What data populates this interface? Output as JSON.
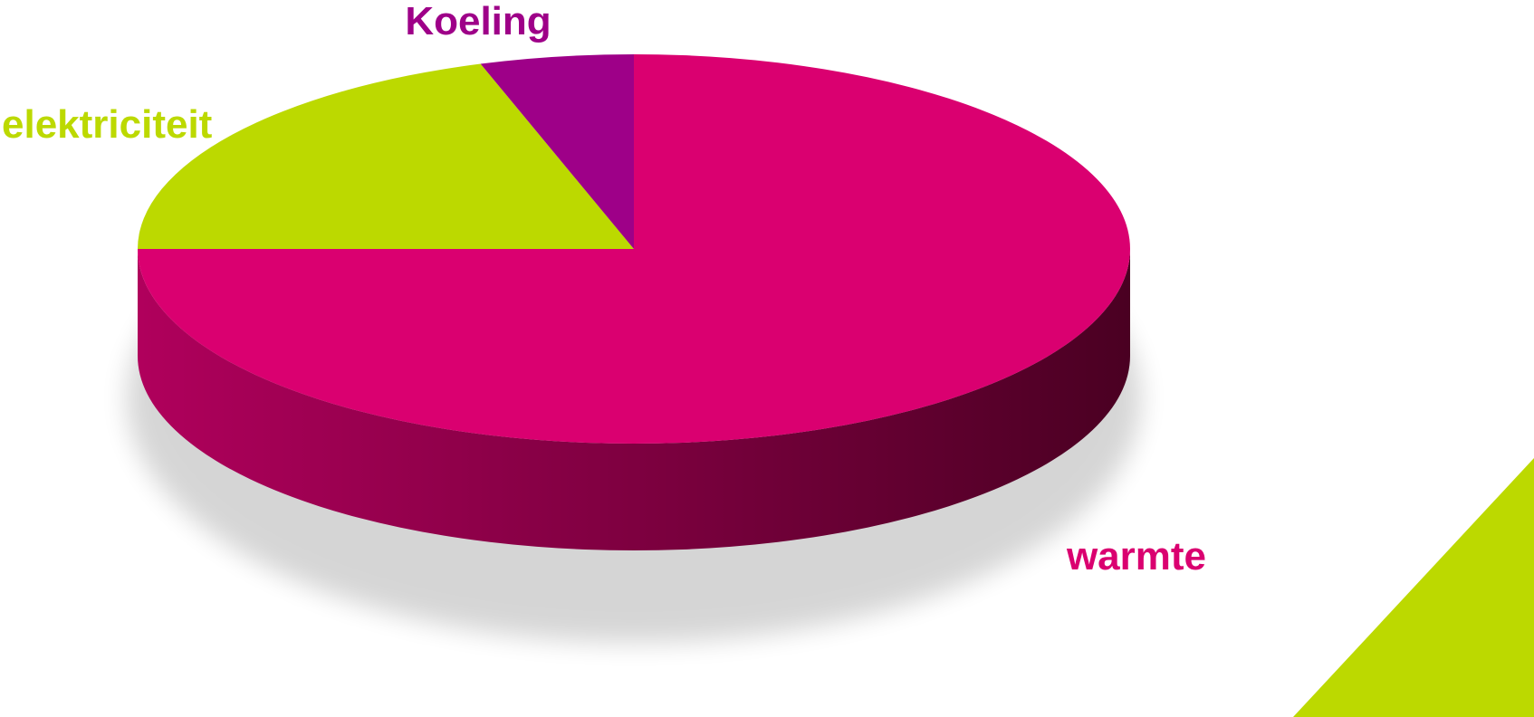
{
  "chart_data": {
    "type": "pie",
    "style": "3d",
    "categories": [
      "warmte",
      "elektriciteit",
      "Koeling"
    ],
    "values": [
      75,
      20,
      5
    ],
    "colors": [
      "#DA0070",
      "#BCD900",
      "#9E0088"
    ],
    "title": "",
    "legend": "none"
  },
  "decoration": {
    "corner_triangle_color": "#BCD900"
  }
}
